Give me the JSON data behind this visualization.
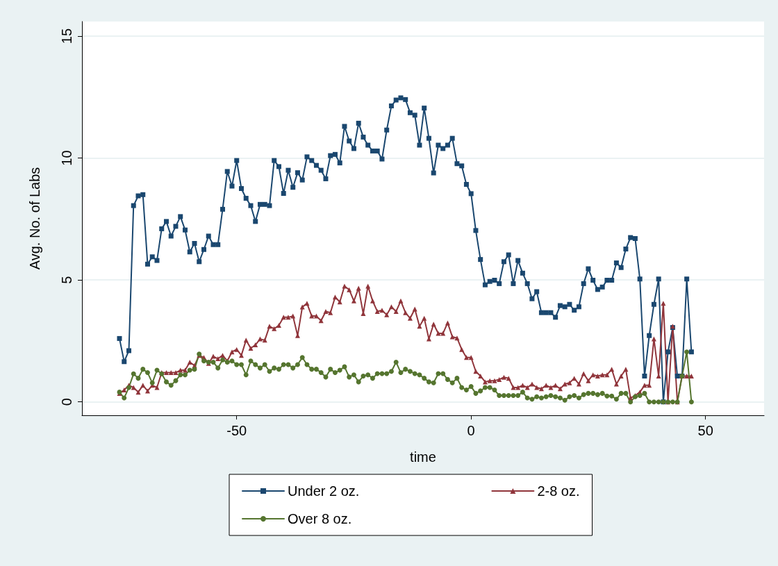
{
  "chart_data": {
    "type": "line",
    "xlabel": "time",
    "ylabel": "Avg. No. of Labs",
    "xlim": [
      -83,
      62.5
    ],
    "xticks": [
      -50,
      0,
      50
    ],
    "ylim": [
      -0.55,
      15.6
    ],
    "yticks": [
      0,
      5,
      10,
      15
    ],
    "grid": "y",
    "legend": "bottom",
    "line_style": "solid",
    "x": [
      -75,
      -74,
      -73,
      -72,
      -71,
      -70,
      -69,
      -68,
      -67,
      -66,
      -65,
      -64,
      -63,
      -62,
      -61,
      -60,
      -59,
      -58,
      -57,
      -56,
      -55,
      -54,
      -53,
      -52,
      -51,
      -50,
      -49,
      -48,
      -47,
      -46,
      -45,
      -44,
      -43,
      -42,
      -41,
      -40,
      -39,
      -38,
      -37,
      -36,
      -35,
      -34,
      -33,
      -32,
      -31,
      -30,
      -29,
      -28,
      -27,
      -26,
      -25,
      -24,
      -23,
      -22,
      -21,
      -20,
      -19,
      -18,
      -17,
      -16,
      -15,
      -14,
      -13,
      -12,
      -11,
      -10,
      -9,
      -8,
      -7,
      -6,
      -5,
      -4,
      -3,
      -2,
      -1,
      0,
      1,
      2,
      3,
      4,
      5,
      6,
      7,
      8,
      9,
      10,
      11,
      12,
      13,
      14,
      15,
      16,
      17,
      18,
      19,
      20,
      21,
      22,
      23,
      24,
      25,
      26,
      27,
      28,
      29,
      30,
      31,
      32,
      33,
      34,
      35,
      36,
      37,
      38,
      39,
      40,
      41,
      42,
      43,
      44,
      45,
      46,
      47
    ],
    "series": [
      {
        "name": "Under 2 oz.",
        "color": "#1a476f",
        "marker": "square",
        "values": [
          2.6,
          1.65,
          2.1,
          8.05,
          8.45,
          8.5,
          5.65,
          5.95,
          5.8,
          7.1,
          7.4,
          6.8,
          7.2,
          7.6,
          7.05,
          6.15,
          6.5,
          5.75,
          6.25,
          6.8,
          6.45,
          6.45,
          7.9,
          9.45,
          8.85,
          9.9,
          8.75,
          8.35,
          8.05,
          7.4,
          8.1,
          8.1,
          8.05,
          9.9,
          9.65,
          8.55,
          9.5,
          8.8,
          9.4,
          9.1,
          10.05,
          9.9,
          9.7,
          9.5,
          9.15,
          10.1,
          10.15,
          9.8,
          11.3,
          10.7,
          10.39,
          11.43,
          10.86,
          10.53,
          10.29,
          10.29,
          9.96,
          11.15,
          12.14,
          12.38,
          12.47,
          12.4,
          11.86,
          11.76,
          10.53,
          12.05,
          10.81,
          9.39,
          10.53,
          10.39,
          10.53,
          10.81,
          9.77,
          9.68,
          8.92,
          8.54,
          7.03,
          5.84,
          4.8,
          4.94,
          4.99,
          4.85,
          5.75,
          6.03,
          4.85,
          5.8,
          5.28,
          4.85,
          4.23,
          4.52,
          3.66,
          3.66,
          3.66,
          3.47,
          3.95,
          3.9,
          4.0,
          3.76,
          3.9,
          4.85,
          5.46,
          4.99,
          4.61,
          4.71,
          4.99,
          4.99,
          5.7,
          5.51,
          6.27,
          6.74,
          6.7,
          5.04,
          1.06,
          2.72,
          4.0,
          5.04,
          0,
          2.05,
          3.05,
          1.06,
          1.06,
          5.04,
          2.05
        ]
      },
      {
        "name": "2-8 oz.",
        "color": "#90353b",
        "marker": "triangle",
        "values": [
          0.35,
          0.49,
          0.68,
          0.59,
          0.4,
          0.68,
          0.45,
          0.68,
          0.59,
          1.2,
          1.2,
          1.2,
          1.2,
          1.3,
          1.3,
          1.63,
          1.49,
          1.91,
          1.82,
          1.58,
          1.87,
          1.77,
          1.91,
          1.68,
          2.05,
          2.15,
          1.91,
          2.53,
          2.2,
          2.34,
          2.58,
          2.53,
          3.1,
          3.0,
          3.14,
          3.47,
          3.47,
          3.52,
          2.72,
          3.89,
          4.04,
          3.52,
          3.52,
          3.33,
          3.71,
          3.66,
          4.3,
          4.1,
          4.75,
          4.6,
          4.14,
          4.66,
          3.62,
          4.75,
          4.14,
          3.71,
          3.76,
          3.57,
          3.9,
          3.71,
          4.14,
          3.66,
          3.43,
          3.81,
          3.1,
          3.43,
          2.58,
          3.19,
          2.81,
          2.81,
          3.24,
          2.67,
          2.62,
          2.15,
          1.82,
          1.82,
          1.25,
          1.06,
          0.82,
          0.87,
          0.87,
          0.92,
          1.01,
          0.97,
          0.59,
          0.59,
          0.68,
          0.59,
          0.73,
          0.59,
          0.54,
          0.68,
          0.59,
          0.68,
          0.54,
          0.73,
          0.78,
          0.97,
          0.73,
          1.16,
          0.87,
          1.11,
          1.06,
          1.11,
          1.11,
          1.34,
          0.73,
          1.06,
          1.34,
          0.16,
          0.26,
          0.4,
          0.68,
          0.68,
          2.58,
          1.06,
          4.04,
          0,
          3.1,
          0,
          1.06,
          1.06,
          1.06
        ]
      },
      {
        "name": "Over 8 oz.",
        "color": "#55752f",
        "marker": "circle",
        "values": [
          0.4,
          0.16,
          0.59,
          1.15,
          0.97,
          1.34,
          1.2,
          0.78,
          1.3,
          1.15,
          0.82,
          0.68,
          0.87,
          1.11,
          1.11,
          1.3,
          1.34,
          1.96,
          1.68,
          1.63,
          1.63,
          1.39,
          1.72,
          1.63,
          1.68,
          1.53,
          1.53,
          1.11,
          1.68,
          1.53,
          1.39,
          1.53,
          1.25,
          1.39,
          1.34,
          1.53,
          1.53,
          1.39,
          1.53,
          1.82,
          1.53,
          1.34,
          1.34,
          1.2,
          1.02,
          1.34,
          1.2,
          1.3,
          1.44,
          1.02,
          1.11,
          0.82,
          1.06,
          1.11,
          0.97,
          1.16,
          1.16,
          1.16,
          1.25,
          1.63,
          1.2,
          1.34,
          1.25,
          1.16,
          1.11,
          0.97,
          0.82,
          0.78,
          1.16,
          1.16,
          0.92,
          0.78,
          0.97,
          0.59,
          0.49,
          0.63,
          0.35,
          0.45,
          0.59,
          0.59,
          0.49,
          0.26,
          0.26,
          0.26,
          0.26,
          0.26,
          0.4,
          0.16,
          0.11,
          0.21,
          0.16,
          0.21,
          0.26,
          0.21,
          0.16,
          0.07,
          0.21,
          0.26,
          0.16,
          0.3,
          0.35,
          0.35,
          0.3,
          0.35,
          0.24,
          0.24,
          0.11,
          0.35,
          0.35,
          0,
          0.21,
          0.26,
          0.35,
          0,
          0,
          0,
          0,
          0,
          0,
          0,
          1.06,
          2.05,
          0
        ]
      }
    ]
  }
}
